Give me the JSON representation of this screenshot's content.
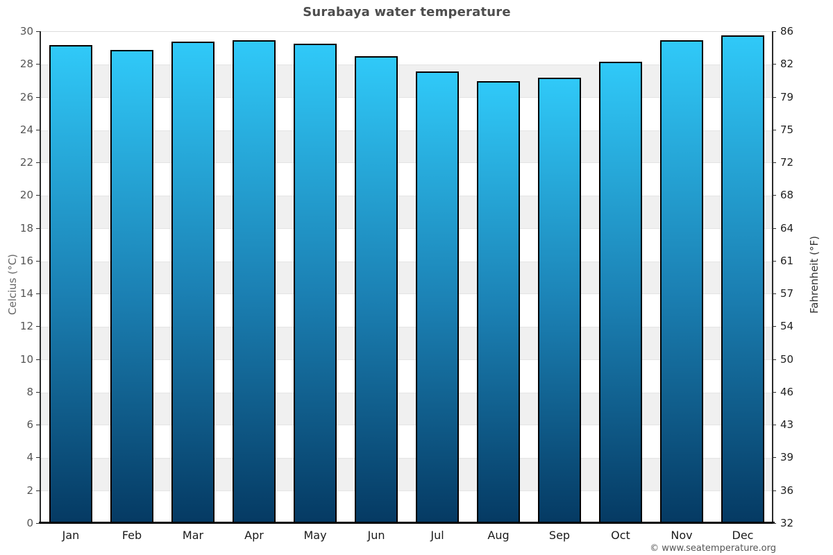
{
  "title": "Surabaya water temperature",
  "axes": {
    "left_label": "Celcius (°C)",
    "right_label": "Fahrenheit (°F)"
  },
  "credits": "© www.seatemperature.org",
  "colors": {
    "bar_gradient_top": "#30c9f8",
    "bar_gradient_mid": "#1b80b3",
    "bar_gradient_bottom": "#053a63",
    "bar_border": "#000000",
    "band_fill": "#f0f0f0",
    "band_edge": "#e4e4e4",
    "axis_line": "#2a2a2a",
    "baseline": "#000000",
    "title_text": "#4d4d4d"
  },
  "chart_data": {
    "type": "bar",
    "title": "Surabaya water temperature",
    "categories": [
      "Jan",
      "Feb",
      "Mar",
      "Apr",
      "May",
      "Jun",
      "Jul",
      "Aug",
      "Sep",
      "Oct",
      "Nov",
      "Dec"
    ],
    "values": [
      29.2,
      28.9,
      29.4,
      29.5,
      29.3,
      28.5,
      27.6,
      27.0,
      27.2,
      28.2,
      29.5,
      29.8
    ],
    "unit": "°C",
    "xlabel": "",
    "ylabel": "Celcius (°C)",
    "ylabel_secondary": "Fahrenheit (°F)",
    "ylim": [
      0,
      30
    ],
    "yticks_celsius": [
      30,
      28,
      26,
      24,
      22,
      20,
      18,
      16,
      14,
      12,
      10,
      8,
      6,
      4,
      2,
      0
    ],
    "yticks_fahrenheit": [
      86,
      82,
      79,
      75,
      72,
      68,
      64,
      61,
      57,
      54,
      50,
      46,
      43,
      39,
      36,
      32
    ],
    "gray_band_ranges_celsius": [
      [
        2,
        4
      ],
      [
        6,
        8
      ],
      [
        10,
        12
      ],
      [
        14,
        16
      ],
      [
        18,
        20
      ],
      [
        22,
        24
      ],
      [
        26,
        28
      ]
    ],
    "legend": "none",
    "grid": "alternating horizontal bands every 2°C"
  }
}
